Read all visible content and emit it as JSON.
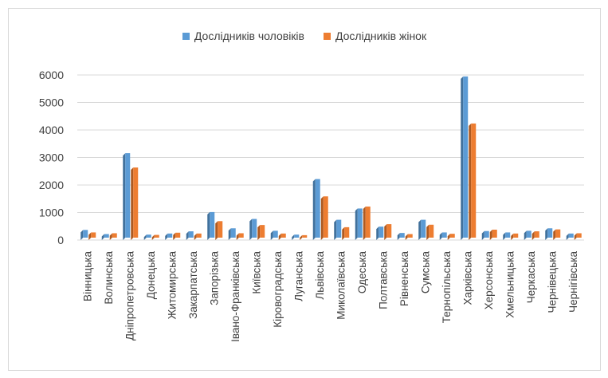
{
  "chart_data": {
    "type": "bar",
    "categories": [
      "Вінницька",
      "Волинська",
      "Дніпропетровська",
      "Донецька",
      "Житомирська",
      "Закарпатська",
      "Запорізька",
      "Івано-Франківська",
      "Київська",
      "Кіровоградська",
      "Луганська",
      "Львівська",
      "Миколаївська",
      "Одеська",
      "Полтавська",
      "Рівненська",
      "Сумська",
      "Тернопільська",
      "Харківська",
      "Херсонська",
      "Хмельницька",
      "Черкаська",
      "Чернівецька",
      "Чернігівська"
    ],
    "series": [
      {
        "name": "Дослідників чоловіків",
        "color": "#5b9bd5",
        "values": [
          280,
          130,
          3070,
          110,
          150,
          230,
          930,
          340,
          680,
          250,
          110,
          2130,
          650,
          1060,
          400,
          170,
          650,
          190,
          5860,
          240,
          190,
          250,
          340,
          150
        ]
      },
      {
        "name": "Дослідників жінок",
        "color": "#ed7d31",
        "values": [
          190,
          160,
          2550,
          100,
          180,
          150,
          600,
          160,
          460,
          150,
          90,
          1500,
          380,
          1130,
          490,
          130,
          470,
          140,
          4150,
          290,
          150,
          230,
          300,
          160
        ]
      }
    ],
    "y_ticks": [
      "0",
      "1000",
      "2000",
      "3000",
      "4000",
      "5000",
      "6000"
    ],
    "ylim": [
      0,
      6000
    ],
    "grid": true,
    "legend_position": "top"
  }
}
